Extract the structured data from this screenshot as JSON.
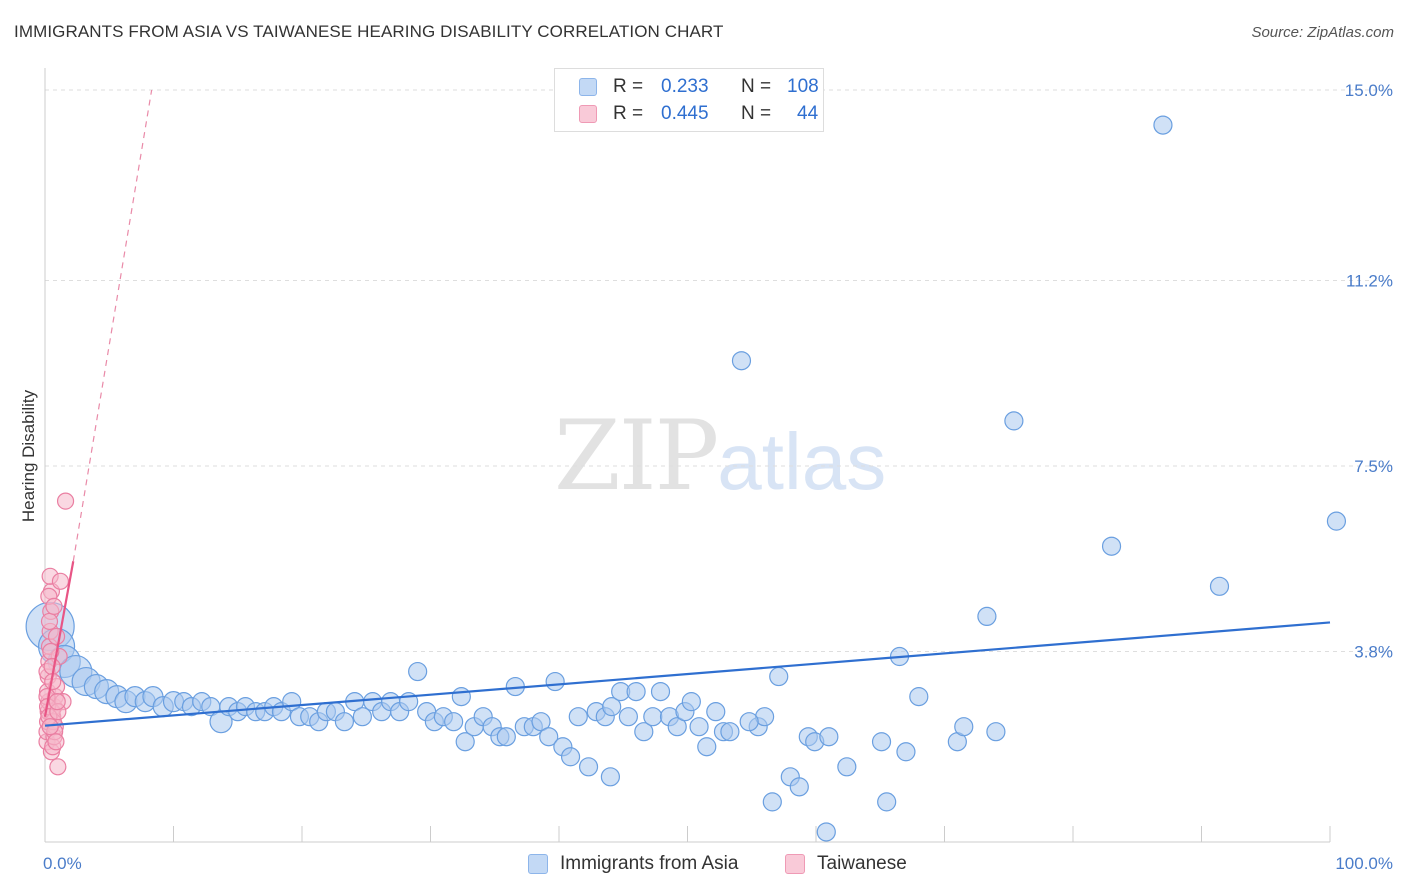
{
  "title": "IMMIGRANTS FROM ASIA VS TAIWANESE HEARING DISABILITY CORRELATION CHART",
  "source": "Source: ZipAtlas.com",
  "watermark": {
    "zip": "ZIP",
    "atlas": "atlas"
  },
  "legend": {
    "rows": [
      {
        "r_label": "R =",
        "r_value": "0.233",
        "n_label": "N =",
        "n_value": "108",
        "color": "#a9c8ef"
      },
      {
        "r_label": "R =",
        "r_value": "0.445",
        "n_label": "N =",
        "n_value": "44",
        "color": "#f6b8cb"
      }
    ]
  },
  "bottom_legend": [
    {
      "label": "Immigrants from Asia",
      "color": "#a9c8ef"
    },
    {
      "label": "Taiwanese",
      "color": "#f6b8cb"
    }
  ],
  "chart_data": {
    "type": "scatter",
    "title": "IMMIGRANTS FROM ASIA VS TAIWANESE HEARING DISABILITY CORRELATION CHART",
    "xlabel": "",
    "ylabel": "Hearing Disability",
    "xlim": [
      0,
      100
    ],
    "ylim": [
      0,
      15.0
    ],
    "x_tick_labels": [
      "0.0%",
      "100.0%"
    ],
    "y_ticks": [
      3.8,
      7.5,
      11.2,
      15.0
    ],
    "y_tick_labels": [
      "3.8%",
      "7.5%",
      "11.2%",
      "15.0%"
    ],
    "grid": "horizontal dashed",
    "legend_position": "top-center",
    "series": [
      {
        "name": "Immigrants from Asia",
        "color": "#a9c8ef",
        "stroke": "#6a9fe0",
        "trend": {
          "x": [
            0,
            100
          ],
          "y": [
            2.32,
            4.38
          ],
          "color": "#2f6fd0",
          "style": "solid"
        },
        "points": [
          [
            0.4,
            4.3,
            24
          ],
          [
            0.9,
            3.9,
            18
          ],
          [
            1.5,
            3.6,
            16
          ],
          [
            2.4,
            3.4,
            16
          ],
          [
            3.2,
            3.2,
            14
          ],
          [
            4.0,
            3.1,
            12
          ],
          [
            4.8,
            3.0,
            12
          ],
          [
            5.6,
            2.9,
            11
          ],
          [
            6.3,
            2.8,
            11
          ],
          [
            7.0,
            2.9,
            10
          ],
          [
            7.8,
            2.8,
            10
          ],
          [
            8.4,
            2.9,
            10
          ],
          [
            9.2,
            2.7,
            10
          ],
          [
            10.0,
            2.8,
            10
          ],
          [
            10.8,
            2.8,
            9
          ],
          [
            11.4,
            2.7,
            9
          ],
          [
            12.2,
            2.8,
            9
          ],
          [
            12.9,
            2.7,
            9
          ],
          [
            13.7,
            2.4,
            11
          ],
          [
            14.3,
            2.7,
            9
          ],
          [
            15.0,
            2.6,
            9
          ],
          [
            15.6,
            2.7,
            9
          ],
          [
            16.4,
            2.6,
            9
          ],
          [
            17.1,
            2.6,
            9
          ],
          [
            17.8,
            2.7,
            9
          ],
          [
            18.4,
            2.6,
            9
          ],
          [
            19.2,
            2.8,
            9
          ],
          [
            19.8,
            2.5,
            9
          ],
          [
            20.6,
            2.5,
            9
          ],
          [
            21.3,
            2.4,
            9
          ],
          [
            21.9,
            2.6,
            9
          ],
          [
            22.6,
            2.6,
            9
          ],
          [
            23.3,
            2.4,
            9
          ],
          [
            24.1,
            2.8,
            9
          ],
          [
            24.7,
            2.5,
            9
          ],
          [
            25.5,
            2.8,
            9
          ],
          [
            26.2,
            2.6,
            9
          ],
          [
            26.9,
            2.8,
            9
          ],
          [
            27.6,
            2.6,
            9
          ],
          [
            28.3,
            2.8,
            9
          ],
          [
            29.0,
            3.4,
            9
          ],
          [
            29.7,
            2.6,
            9
          ],
          [
            30.3,
            2.4,
            9
          ],
          [
            31.0,
            2.5,
            9
          ],
          [
            31.8,
            2.4,
            9
          ],
          [
            32.4,
            2.9,
            9
          ],
          [
            32.7,
            2.0,
            9
          ],
          [
            33.4,
            2.3,
            9
          ],
          [
            34.1,
            2.5,
            9
          ],
          [
            34.8,
            2.3,
            9
          ],
          [
            35.4,
            2.1,
            9
          ],
          [
            35.9,
            2.1,
            9
          ],
          [
            36.6,
            3.1,
            9
          ],
          [
            37.3,
            2.3,
            9
          ],
          [
            38.0,
            2.3,
            9
          ],
          [
            38.6,
            2.4,
            9
          ],
          [
            39.2,
            2.1,
            9
          ],
          [
            39.7,
            3.2,
            9
          ],
          [
            40.3,
            1.9,
            9
          ],
          [
            40.9,
            1.7,
            9
          ],
          [
            41.5,
            2.5,
            9
          ],
          [
            42.3,
            1.5,
            9
          ],
          [
            42.9,
            2.6,
            9
          ],
          [
            43.6,
            2.5,
            9
          ],
          [
            44.1,
            2.7,
            9
          ],
          [
            44.8,
            3.0,
            9
          ],
          [
            45.4,
            2.5,
            9
          ],
          [
            46.0,
            3.0,
            9
          ],
          [
            46.6,
            2.2,
            9
          ],
          [
            47.3,
            2.5,
            9
          ],
          [
            47.9,
            3.0,
            9
          ],
          [
            48.6,
            2.5,
            9
          ],
          [
            49.2,
            2.3,
            9
          ],
          [
            49.8,
            2.6,
            9
          ],
          [
            50.3,
            2.8,
            9
          ],
          [
            50.9,
            2.3,
            9
          ],
          [
            51.5,
            1.9,
            9
          ],
          [
            52.2,
            2.6,
            9
          ],
          [
            52.8,
            2.2,
            9
          ],
          [
            53.3,
            2.2,
            9
          ],
          [
            54.2,
            9.6,
            9
          ],
          [
            55.5,
            2.3,
            9
          ],
          [
            56.0,
            2.5,
            9
          ],
          [
            56.6,
            0.8,
            9
          ],
          [
            57.1,
            3.3,
            9
          ],
          [
            58.0,
            1.3,
            9
          ],
          [
            58.7,
            1.1,
            9
          ],
          [
            59.4,
            2.1,
            9
          ],
          [
            59.9,
            2.0,
            9
          ],
          [
            60.8,
            0.2,
            9
          ],
          [
            62.4,
            1.5,
            9
          ],
          [
            65.1,
            2.0,
            9
          ],
          [
            65.5,
            0.8,
            9
          ],
          [
            66.5,
            3.7,
            9
          ],
          [
            67.0,
            1.8,
            9
          ],
          [
            71.0,
            2.0,
            9
          ],
          [
            73.3,
            4.5,
            9
          ],
          [
            75.4,
            8.4,
            9
          ],
          [
            83.0,
            5.9,
            9
          ],
          [
            87.0,
            14.3,
            9
          ],
          [
            91.4,
            5.1,
            9
          ],
          [
            100.5,
            6.4,
            9
          ],
          [
            61.0,
            2.1,
            9
          ],
          [
            68.0,
            2.9,
            9
          ],
          [
            71.5,
            2.3,
            9
          ],
          [
            74.0,
            2.2,
            9
          ],
          [
            54.8,
            2.4,
            9
          ],
          [
            44.0,
            1.3,
            9
          ]
        ]
      },
      {
        "name": "Taiwanese",
        "color": "#f6b8cb",
        "stroke": "#ea7fa2",
        "trend": {
          "x": [
            0,
            2.2
          ],
          "y": [
            2.5,
            5.6
          ],
          "color": "#e85585",
          "style": "solid"
        },
        "trend_extension": {
          "x": [
            2.2,
            8.3
          ],
          "y": [
            5.6,
            15.0
          ],
          "color": "#e98aa8",
          "style": "dashed"
        },
        "points": [
          [
            0.1,
            2.0,
            8
          ],
          [
            0.15,
            2.2,
            8
          ],
          [
            0.2,
            2.4,
            8
          ],
          [
            0.25,
            2.6,
            8
          ],
          [
            0.3,
            2.8,
            8
          ],
          [
            0.2,
            3.0,
            8
          ],
          [
            0.25,
            3.3,
            8
          ],
          [
            0.3,
            3.6,
            8
          ],
          [
            0.35,
            3.9,
            8
          ],
          [
            0.4,
            4.2,
            8
          ],
          [
            0.45,
            4.6,
            8
          ],
          [
            0.5,
            5.0,
            8
          ],
          [
            0.4,
            5.3,
            8
          ],
          [
            0.6,
            2.5,
            8
          ],
          [
            0.7,
            2.7,
            8
          ],
          [
            0.8,
            2.9,
            8
          ],
          [
            0.9,
            3.1,
            8
          ],
          [
            0.5,
            1.8,
            8
          ],
          [
            0.6,
            1.9,
            8
          ],
          [
            0.7,
            2.1,
            8
          ],
          [
            0.8,
            2.3,
            8
          ],
          [
            1.0,
            1.5,
            8
          ],
          [
            1.1,
            3.7,
            8
          ],
          [
            1.2,
            5.2,
            8
          ],
          [
            1.4,
            2.8,
            8
          ],
          [
            1.6,
            6.8,
            8
          ],
          [
            0.3,
            4.9,
            8
          ],
          [
            0.35,
            4.4,
            8
          ],
          [
            0.1,
            3.4,
            8
          ],
          [
            0.15,
            2.9,
            8
          ],
          [
            0.55,
            2.6,
            8
          ],
          [
            0.65,
            2.4,
            8
          ],
          [
            0.75,
            2.2,
            8
          ],
          [
            0.85,
            2.0,
            8
          ],
          [
            0.45,
            3.8,
            8
          ],
          [
            0.55,
            3.5,
            8
          ],
          [
            0.2,
            2.7,
            8
          ],
          [
            0.3,
            2.5,
            8
          ],
          [
            0.9,
            4.1,
            8
          ],
          [
            1.0,
            2.6,
            8
          ],
          [
            0.4,
            2.3,
            8
          ],
          [
            0.6,
            3.2,
            8
          ],
          [
            0.7,
            4.7,
            8
          ],
          [
            0.95,
            2.8,
            8
          ]
        ]
      }
    ]
  }
}
